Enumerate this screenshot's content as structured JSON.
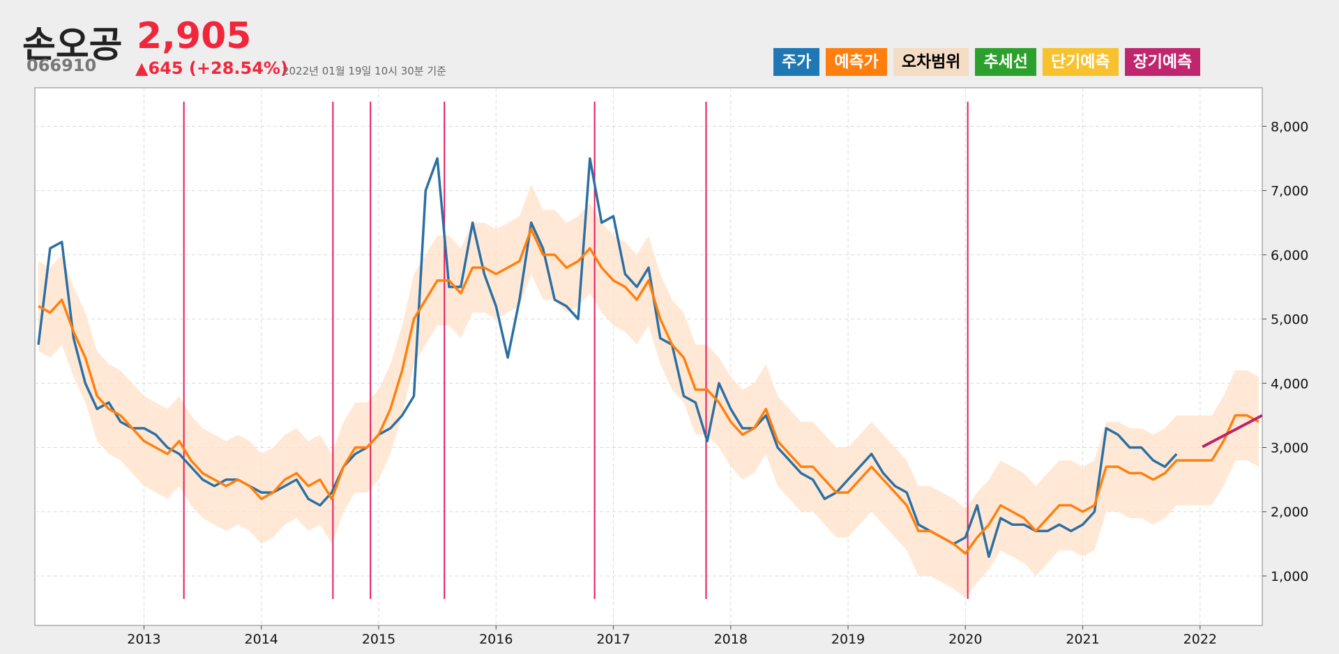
{
  "header": {
    "name": "손오공",
    "price": "2,905",
    "code": "066910",
    "change": "▲645 (+28.54%)",
    "timestamp": "2022년 01월 19일 10시 30분 기준"
  },
  "chart_data": {
    "type": "line",
    "x": [
      2012.1,
      2012.2,
      2012.3,
      2012.4,
      2012.5,
      2012.6,
      2012.7,
      2012.8,
      2012.9,
      2013.0,
      2013.1,
      2013.2,
      2013.3,
      2013.4,
      2013.5,
      2013.6,
      2013.7,
      2013.8,
      2013.9,
      2014.0,
      2014.1,
      2014.2,
      2014.3,
      2014.4,
      2014.5,
      2014.6,
      2014.7,
      2014.8,
      2014.9,
      2015.0,
      2015.1,
      2015.2,
      2015.3,
      2015.4,
      2015.5,
      2015.6,
      2015.7,
      2015.8,
      2015.9,
      2016.0,
      2016.1,
      2016.2,
      2016.3,
      2016.4,
      2016.5,
      2016.6,
      2016.7,
      2016.8,
      2016.9,
      2017.0,
      2017.1,
      2017.2,
      2017.3,
      2017.4,
      2017.5,
      2017.6,
      2017.7,
      2017.8,
      2017.9,
      2018.0,
      2018.1,
      2018.2,
      2018.3,
      2018.4,
      2018.5,
      2018.6,
      2018.7,
      2018.8,
      2018.9,
      2019.0,
      2019.1,
      2019.2,
      2019.3,
      2019.4,
      2019.5,
      2019.6,
      2019.7,
      2019.8,
      2019.9,
      2020.0,
      2020.1,
      2020.2,
      2020.3,
      2020.4,
      2020.5,
      2020.6,
      2020.7,
      2020.8,
      2020.9,
      2021.0,
      2021.1,
      2021.2,
      2021.3,
      2021.4,
      2021.5,
      2021.6,
      2021.7,
      2021.8,
      2021.9,
      2022.0,
      2022.1,
      2022.2,
      2022.3,
      2022.4,
      2022.5
    ],
    "series": [
      {
        "name": "주가",
        "color": "#1f77b4",
        "text_color": "#ffffff",
        "line_color": "#2b6fa3",
        "values": [
          4600,
          6100,
          6200,
          4700,
          4000,
          3600,
          3700,
          3400,
          3300,
          3300,
          3200,
          3000,
          2900,
          2700,
          2500,
          2400,
          2500,
          2500,
          2400,
          2300,
          2300,
          2400,
          2500,
          2200,
          2100,
          2300,
          2700,
          2900,
          3000,
          3200,
          3300,
          3500,
          3800,
          7000,
          7500,
          5500,
          5500,
          6500,
          5700,
          5200,
          4400,
          5300,
          6500,
          6100,
          5300,
          5200,
          5000,
          7500,
          6500,
          6600,
          5700,
          5500,
          5800,
          4700,
          4600,
          3800,
          3700,
          3100,
          4000,
          3600,
          3300,
          3300,
          3500,
          3000,
          2800,
          2600,
          2500,
          2200,
          2300,
          2500,
          2700,
          2900,
          2600,
          2400,
          2300,
          1800,
          1700,
          1600,
          1500,
          1600,
          2100,
          1300,
          1900,
          1800,
          1800,
          1700,
          1700,
          1800,
          1700,
          1800,
          2000,
          3300,
          3200,
          3000,
          3000,
          2800,
          2700,
          2900,
          null,
          null,
          null,
          null,
          null,
          null,
          null
        ]
      },
      {
        "name": "예측가",
        "color": "#ff7f0e",
        "text_color": "#ffffff",
        "line_color": "#ff7f0e",
        "values": [
          5200,
          5100,
          5300,
          4800,
          4400,
          3800,
          3600,
          3500,
          3300,
          3100,
          3000,
          2900,
          3100,
          2800,
          2600,
          2500,
          2400,
          2500,
          2400,
          2200,
          2300,
          2500,
          2600,
          2400,
          2500,
          2200,
          2700,
          3000,
          3000,
          3200,
          3600,
          4200,
          5000,
          5300,
          5600,
          5600,
          5400,
          5800,
          5800,
          5700,
          5800,
          5900,
          6400,
          6000,
          6000,
          5800,
          5900,
          6100,
          5800,
          5600,
          5500,
          5300,
          5600,
          5000,
          4600,
          4400,
          3900,
          3900,
          3700,
          3400,
          3200,
          3300,
          3600,
          3100,
          2900,
          2700,
          2700,
          2500,
          2300,
          2300,
          2500,
          2700,
          2500,
          2300,
          2100,
          1700,
          1700,
          1600,
          1500,
          1350,
          1600,
          1800,
          2100,
          2000,
          1900,
          1700,
          1900,
          2100,
          2100,
          2000,
          2100,
          2700,
          2700,
          2600,
          2600,
          2500,
          2600,
          2800,
          2800,
          2800,
          2800,
          3100,
          3500,
          3500,
          3400
        ]
      },
      {
        "name": "오차범위",
        "color": "#f5dcc5",
        "text_color": "#000000",
        "line_color": "#ffe2c8",
        "upper": [
          5900,
          5800,
          6000,
          5500,
          5100,
          4500,
          4300,
          4200,
          4000,
          3800,
          3700,
          3600,
          3800,
          3500,
          3300,
          3200,
          3100,
          3200,
          3100,
          2900,
          3000,
          3200,
          3300,
          3100,
          3200,
          2900,
          3400,
          3700,
          3700,
          3900,
          4300,
          4900,
          5700,
          6000,
          6300,
          6300,
          6100,
          6500,
          6500,
          6400,
          6500,
          6600,
          7100,
          6700,
          6700,
          6500,
          6600,
          6800,
          6500,
          6300,
          6200,
          6000,
          6300,
          5700,
          5300,
          5100,
          4600,
          4600,
          4400,
          4100,
          3900,
          4000,
          4300,
          3800,
          3600,
          3400,
          3400,
          3200,
          3000,
          3000,
          3200,
          3400,
          3200,
          3000,
          2800,
          2400,
          2400,
          2300,
          2200,
          2050,
          2300,
          2500,
          2800,
          2700,
          2600,
          2400,
          2600,
          2800,
          2800,
          2700,
          2800,
          3400,
          3400,
          3300,
          3300,
          3200,
          3300,
          3500,
          3500,
          3500,
          3500,
          3800,
          4200,
          4200,
          4100
        ],
        "lower": [
          4500,
          4400,
          4600,
          4100,
          3700,
          3100,
          2900,
          2800,
          2600,
          2400,
          2300,
          2200,
          2400,
          2100,
          1900,
          1800,
          1700,
          1800,
          1700,
          1500,
          1600,
          1800,
          1900,
          1700,
          1800,
          1500,
          2000,
          2300,
          2300,
          2500,
          2900,
          3500,
          4300,
          4600,
          4900,
          4900,
          4700,
          5100,
          5100,
          5000,
          5100,
          5200,
          5700,
          5300,
          5300,
          5100,
          5200,
          5400,
          5100,
          4900,
          4800,
          4600,
          4900,
          4300,
          3900,
          3700,
          3200,
          3200,
          3000,
          2700,
          2500,
          2600,
          2900,
          2400,
          2200,
          2000,
          2000,
          1800,
          1600,
          1600,
          1800,
          2000,
          1800,
          1600,
          1400,
          1000,
          1000,
          900,
          800,
          650,
          900,
          1100,
          1400,
          1300,
          1200,
          1000,
          1200,
          1400,
          1400,
          1300,
          1400,
          2000,
          2000,
          1900,
          1900,
          1800,
          1900,
          2100,
          2100,
          2100,
          2100,
          2400,
          2800,
          2800,
          2700
        ]
      },
      {
        "name": "추세선",
        "color": "#2ca02c",
        "text_color": "#ffffff",
        "line_color": "#e8175d",
        "x": [
          2013.34,
          2014.61,
          2014.93,
          2015.56,
          2016.84,
          2017.79,
          2020.02
        ]
      },
      {
        "name": "단기예측",
        "color": "#f7c22e",
        "text_color": "#ffffff"
      },
      {
        "name": "장기예측",
        "color": "#c0266e",
        "text_color": "#ffffff",
        "line_color": "#b8246a",
        "x": [
          2022.02,
          2022.53
        ],
        "values": [
          3010,
          3500
        ]
      }
    ],
    "xlim": [
      2012.07,
      2022.53
    ],
    "xticks": [
      2013,
      2014,
      2015,
      2016,
      2017,
      2018,
      2019,
      2020,
      2021,
      2022
    ],
    "ylim": [
      230,
      8600
    ],
    "yticks": [
      {
        "value": 1000,
        "label": "1,000"
      },
      {
        "value": 2000,
        "label": "2,000"
      },
      {
        "value": 3000,
        "label": "3,000"
      },
      {
        "value": 4000,
        "label": "4,000"
      },
      {
        "value": 5000,
        "label": "5,000"
      },
      {
        "value": 6000,
        "label": "6,000"
      },
      {
        "value": 7000,
        "label": "7,000"
      },
      {
        "value": 8000,
        "label": "8,000"
      }
    ],
    "grid": true
  }
}
